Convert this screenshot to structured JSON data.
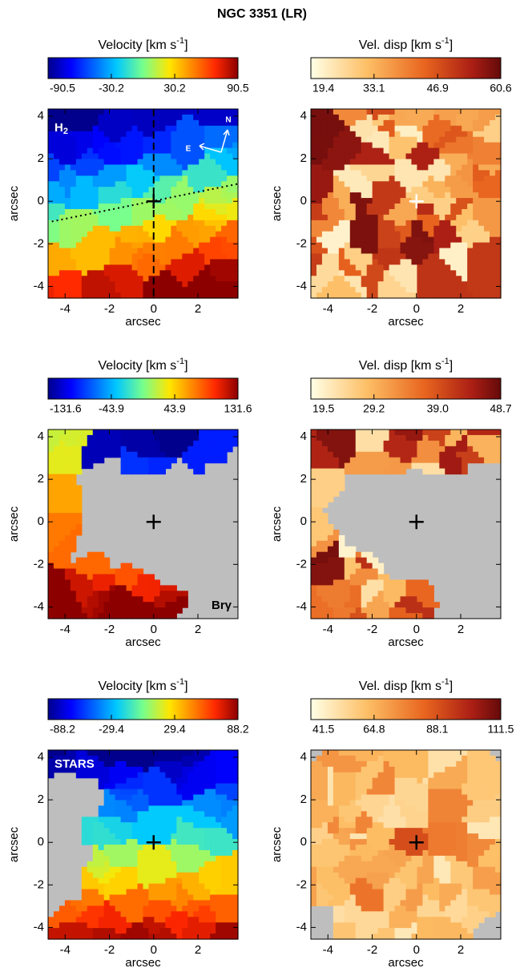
{
  "title": "NGC 3351 (LR)",
  "chart_data": [
    {
      "type": "map",
      "colorbar_title": "Velocity  [km s",
      "colorbar_title_sup": "-1",
      "colorbar_title_end": "]",
      "colormap": "jet",
      "clim": [
        -90.5,
        90.5
      ],
      "cticks": [
        -90.5,
        -30.2,
        30.2,
        90.5
      ],
      "xlim": [
        -4.77,
        3.81
      ],
      "ylim": [
        -4.55,
        4.34
      ],
      "xticks": [
        -4,
        -2,
        0,
        2
      ],
      "yticks": [
        -4,
        -2,
        0,
        2,
        4
      ],
      "xlabel": "arcsec",
      "ylabel": "arcsec",
      "label": "H",
      "label_sub": "2",
      "compass": [
        "N",
        "E"
      ]
    },
    {
      "type": "map",
      "colorbar_title": "Vel. disp  [km s",
      "colorbar_title_sup": "-1",
      "colorbar_title_end": "]",
      "colormap": "hot_r",
      "clim": [
        19.4,
        60.6
      ],
      "cticks": [
        19.4,
        33.1,
        46.9,
        60.6
      ],
      "xlim": [
        -4.77,
        3.81
      ],
      "ylim": [
        -4.55,
        4.34
      ],
      "xticks": [
        -4,
        -2,
        0,
        2
      ],
      "yticks": [
        -4,
        -2,
        0,
        2,
        4
      ],
      "xlabel": "arcsec",
      "ylabel": "arcsec"
    },
    {
      "type": "map",
      "colorbar_title": "Velocity  [km s",
      "colorbar_title_sup": "-1",
      "colorbar_title_end": "]",
      "colormap": "jet",
      "clim": [
        -131.6,
        131.6
      ],
      "cticks": [
        -131.6,
        -43.9,
        43.9,
        131.6
      ],
      "xlim": [
        -4.77,
        3.81
      ],
      "ylim": [
        -4.55,
        4.34
      ],
      "xticks": [
        -4,
        -2,
        0,
        2
      ],
      "yticks": [
        -4,
        -2,
        0,
        2,
        4
      ],
      "xlabel": "arcsec",
      "ylabel": "arcsec",
      "label": "Brγ"
    },
    {
      "type": "map",
      "colorbar_title": "Vel. disp  [km s",
      "colorbar_title_sup": "-1",
      "colorbar_title_end": "]",
      "colormap": "hot_r",
      "clim": [
        19.5,
        48.7
      ],
      "cticks": [
        19.5,
        29.2,
        {
          "value": 39,
          "label": "39.0"
        },
        48.7
      ],
      "xlim": [
        -4.77,
        3.81
      ],
      "ylim": [
        -4.55,
        4.34
      ],
      "xticks": [
        -4,
        -2,
        0,
        2
      ],
      "yticks": [
        -4,
        -2,
        0,
        2,
        4
      ],
      "xlabel": "arcsec",
      "ylabel": "arcsec"
    },
    {
      "type": "map",
      "colorbar_title": "Velocity  [km s",
      "colorbar_title_sup": "-1",
      "colorbar_title_end": "]",
      "colormap": "jet",
      "clim": [
        -88.2,
        88.2
      ],
      "cticks": [
        -88.2,
        -29.4,
        29.4,
        88.2
      ],
      "xlim": [
        -4.77,
        3.81
      ],
      "ylim": [
        -4.55,
        4.34
      ],
      "xticks": [
        -4,
        -2,
        0,
        2
      ],
      "yticks": [
        -4,
        -2,
        0,
        2,
        4
      ],
      "xlabel": "arcsec",
      "ylabel": "arcsec",
      "label": "STARS"
    },
    {
      "type": "map",
      "colorbar_title": "Vel. disp  [km s",
      "colorbar_title_sup": "-1",
      "colorbar_title_end": "]",
      "colormap": "hot_r",
      "clim": [
        41.5,
        111.5
      ],
      "cticks": [
        41.5,
        64.8,
        88.1,
        111.5
      ],
      "xlim": [
        -4.77,
        3.81
      ],
      "ylim": [
        -4.55,
        4.34
      ],
      "xticks": [
        -4,
        -2,
        0,
        2
      ],
      "yticks": [
        -4,
        -2,
        0,
        2,
        4
      ],
      "xlabel": "arcsec",
      "ylabel": "arcsec"
    }
  ]
}
